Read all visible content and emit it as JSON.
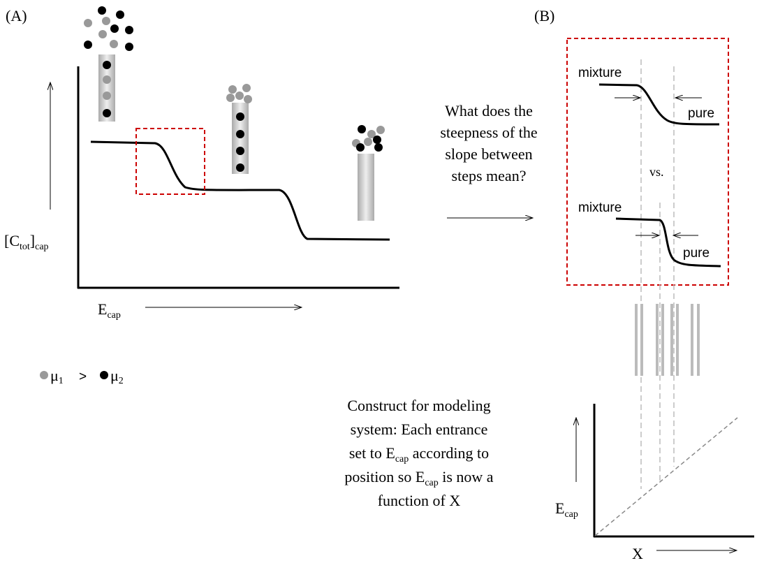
{
  "panel_a": {
    "label": "(A)",
    "y_axis": {
      "open": "[C",
      "sub1": "tot",
      "close": "]",
      "sub2": "cap"
    },
    "x_axis": {
      "base": "E",
      "sub": "cap"
    },
    "legend": {
      "mu1": "μ",
      "sub1": "1",
      "compare": ">",
      "mu2": "μ",
      "sub2": "2"
    }
  },
  "panel_b": {
    "label": "(B)",
    "question": [
      "What does the",
      "steepness of the",
      "slope between",
      "steps mean?"
    ],
    "top_curve": {
      "left": "mixture",
      "right": "pure"
    },
    "vs": "vs.",
    "bottom_curve": {
      "left": "mixture",
      "right": "pure"
    }
  },
  "construct": {
    "line1": "Construct for modeling",
    "line2": "system:  Each entrance",
    "line3": {
      "before": "set to E",
      "sub": "cap",
      "after": " according to"
    },
    "line4": {
      "before": "position so E",
      "sub": "cap",
      "after": " is now a"
    },
    "line5": "function of X"
  },
  "model_axes": {
    "y_axis": {
      "base": "E",
      "sub": "cap"
    },
    "x_axis": "X"
  }
}
